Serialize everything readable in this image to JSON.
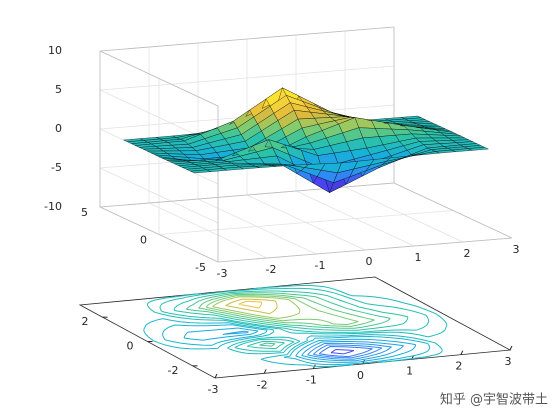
{
  "chart_data": [
    {
      "type": "surface",
      "x": [
        -3,
        -2,
        -1,
        0,
        1,
        2,
        3
      ],
      "y": [
        -3,
        -2,
        -1,
        0,
        1,
        2,
        3
      ],
      "z": [
        [
          0,
          0.0,
          -0.03,
          -0.24,
          -0.11,
          -0.01,
          0
        ],
        [
          0,
          0.05,
          -0.59,
          -4.76,
          -2.1,
          -0.06,
          0
        ],
        [
          -0.01,
          -0.13,
          1.85,
          -0.72,
          -0.27,
          0.5,
          0.01
        ],
        [
          -0.04,
          -1.33,
          -1.65,
          0.98,
          2.94,
          1.41,
          0.03
        ],
        [
          -0.01,
          -0.48,
          0.23,
          3.69,
          2.43,
          0.58,
          0.01
        ],
        [
          0,
          0.08,
          2.1,
          5.86,
          2.21,
          0.13,
          0
        ],
        [
          0,
          0.01,
          0.11,
          0.3,
          0.11,
          0.01,
          0
        ]
      ],
      "xlim": [
        -3,
        3
      ],
      "ylim": [
        -5,
        5
      ],
      "zlim": [
        -10,
        10
      ],
      "xticks": [
        -3,
        -2,
        -1,
        0,
        1,
        2,
        3
      ],
      "yticks": [
        -5,
        0,
        5
      ],
      "zticks": [
        -10,
        -5,
        0,
        5,
        10
      ],
      "grid": true,
      "edge_color": "#000000",
      "colormap": [
        "#3e26a8",
        "#4743f0",
        "#2f8cf3",
        "#17b1d8",
        "#2cc3a7",
        "#8acc6a",
        "#e2b93b",
        "#fbd93a",
        "#f9fb0e"
      ]
    },
    {
      "type": "contour",
      "x": [
        -3,
        -2,
        -1,
        0,
        1,
        2,
        3
      ],
      "y": [
        -3,
        -2,
        -1,
        0,
        1,
        2,
        3
      ],
      "z": [
        [
          0,
          0.0,
          -0.03,
          -0.24,
          -0.11,
          -0.01,
          0
        ],
        [
          0,
          0.05,
          -0.59,
          -4.76,
          -2.1,
          -0.06,
          0
        ],
        [
          -0.01,
          -0.13,
          1.85,
          -0.72,
          -0.27,
          0.5,
          0.01
        ],
        [
          -0.04,
          -1.33,
          -1.65,
          0.98,
          2.94,
          1.41,
          0.03
        ],
        [
          -0.01,
          -0.48,
          0.23,
          3.69,
          2.43,
          0.58,
          0.01
        ],
        [
          0,
          0.08,
          2.1,
          5.86,
          2.21,
          0.13,
          0
        ],
        [
          0,
          0.01,
          0.11,
          0.3,
          0.11,
          0.01,
          0
        ]
      ],
      "levels": [
        -6,
        -5,
        -4,
        -3,
        -2.5,
        -2,
        -1.5,
        -1,
        -0.5,
        -0.2,
        0.2,
        0.5,
        1,
        1.5,
        2,
        2.5,
        3,
        4,
        5,
        6,
        7,
        8
      ],
      "xlim": [
        -3,
        3
      ],
      "ylim": [
        -3,
        3
      ],
      "xticks": [
        -3,
        -2,
        -1,
        0,
        1,
        2,
        3
      ],
      "yticks": [
        -2,
        0,
        2
      ],
      "colormap": [
        "#3e26a8",
        "#4743f0",
        "#2f8cf3",
        "#17b1d8",
        "#2cc3a7",
        "#8acc6a",
        "#e2b93b",
        "#fbd93a",
        "#f9fb0e"
      ]
    }
  ],
  "watermark": "知乎 @宇智波带土"
}
